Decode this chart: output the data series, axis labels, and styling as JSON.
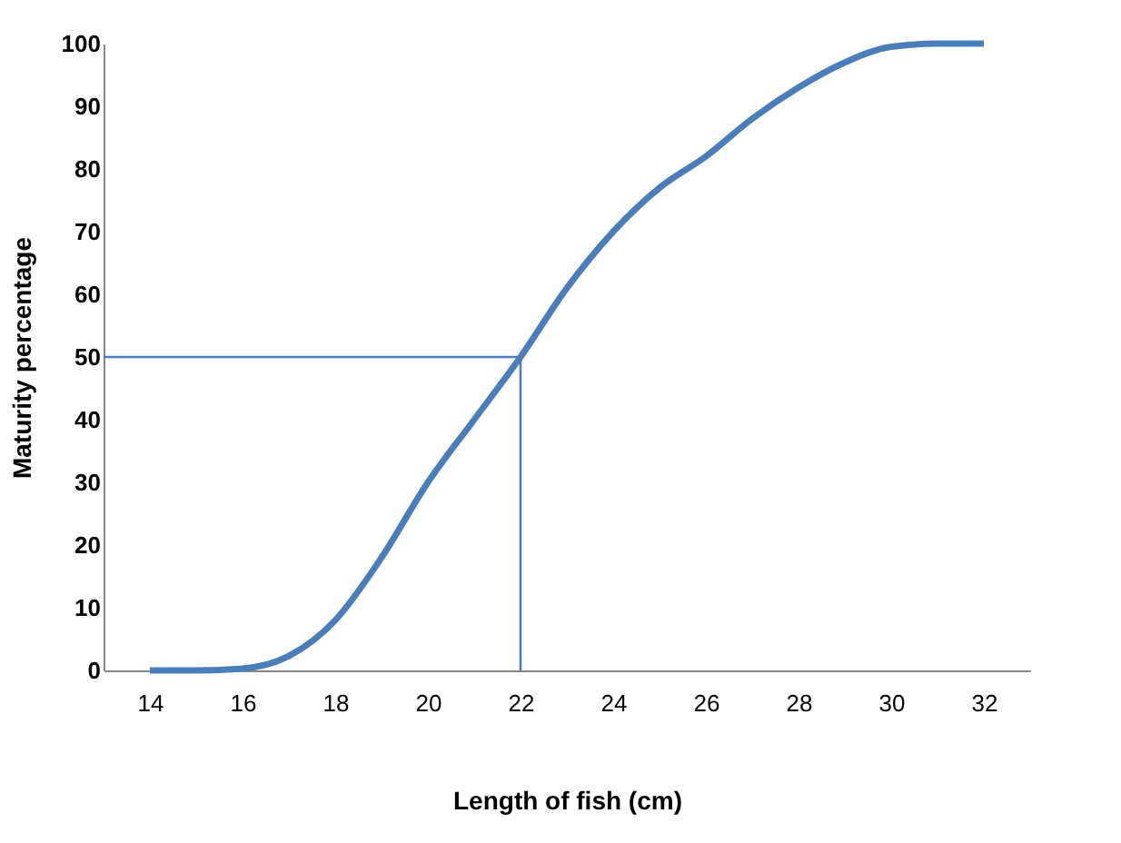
{
  "chart_data": {
    "type": "line",
    "xlabel": "Length of fish (cm)",
    "ylabel": "Maturity percentage",
    "x": [
      14,
      15,
      16,
      17,
      18,
      19,
      20,
      21,
      22,
      23,
      24,
      25,
      26,
      27,
      28,
      29,
      30,
      31,
      32
    ],
    "series": [
      {
        "color": "#4a7ebb",
        "values": [
          0,
          0,
          0.3,
          2.3,
          8,
          18,
          30,
          40,
          50,
          61,
          70,
          77,
          82,
          88,
          93,
          97,
          99.5,
          100,
          100
        ]
      }
    ],
    "xlim": [
      13,
      33
    ],
    "xticks": [
      14,
      16,
      18,
      20,
      22,
      24,
      26,
      28,
      30,
      32
    ],
    "ylim": [
      0,
      100
    ],
    "yticks": [
      0,
      10,
      20,
      30,
      40,
      50,
      60,
      70,
      80,
      90,
      100
    ],
    "grid": false,
    "marker": "none",
    "line_style": "solid",
    "ref_lines": [
      {
        "axis": "y",
        "value": 50,
        "color": "#4a7ebb"
      },
      {
        "axis": "x",
        "value": 22,
        "color": "#4a7ebb"
      }
    ]
  }
}
